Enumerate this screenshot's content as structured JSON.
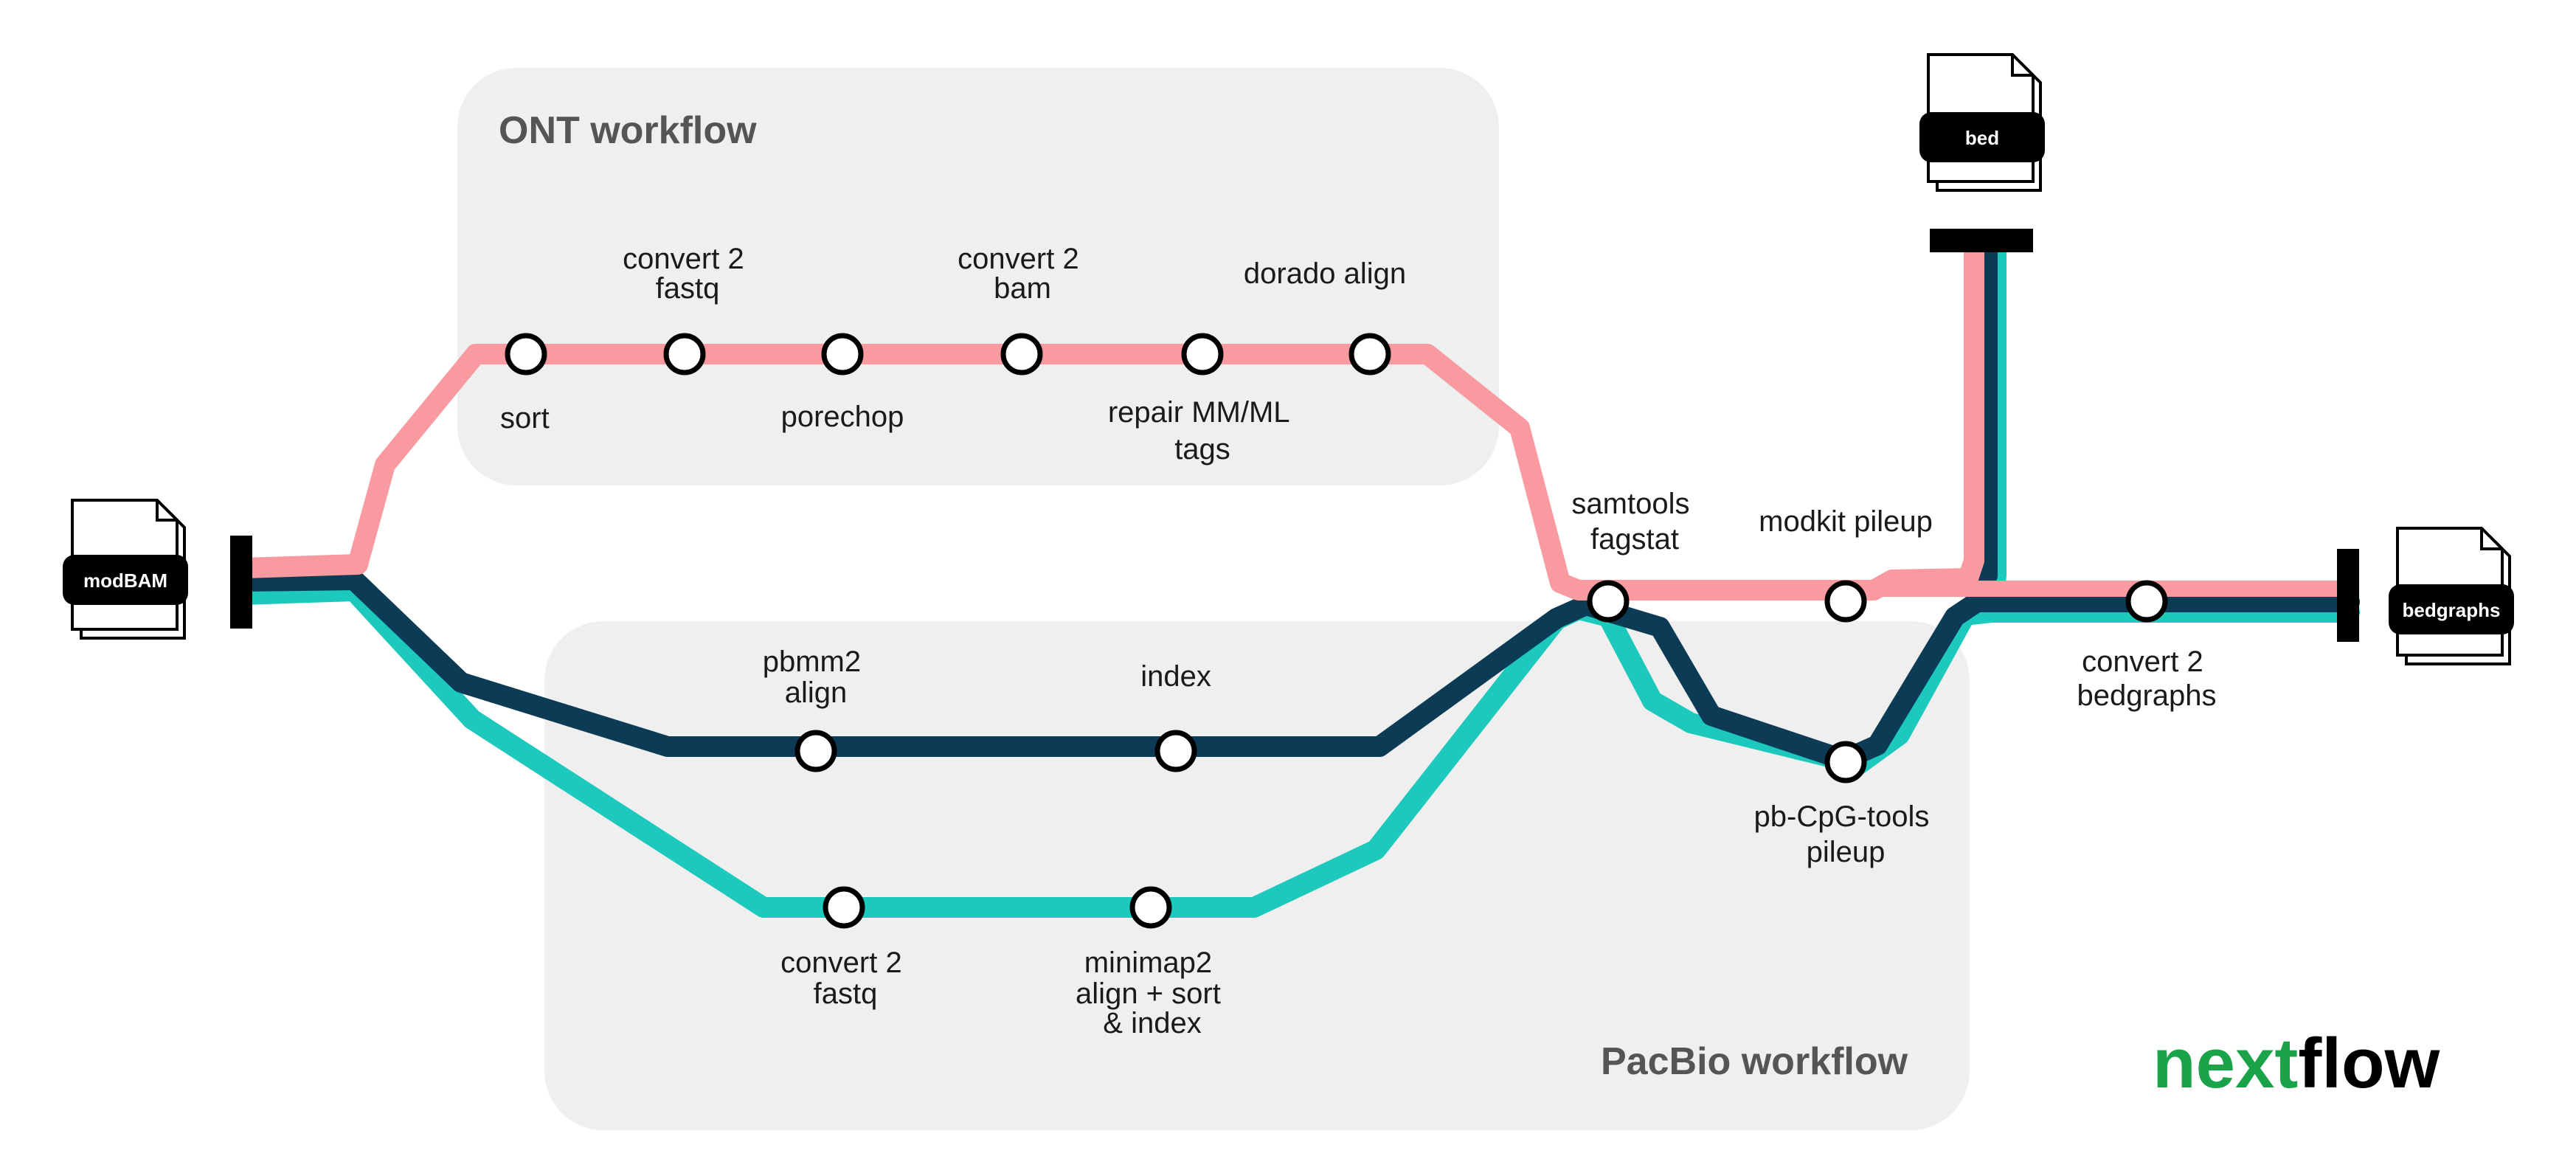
{
  "groups": {
    "ont": "ONT workflow",
    "pacbio": "PacBio workflow"
  },
  "files": {
    "input": "modBAM",
    "bed": "bed",
    "bedgraphs": "bedgraphs"
  },
  "steps": {
    "sort": "sort",
    "convert_fastq_ont": [
      "convert 2",
      "fastq"
    ],
    "porechop": "porechop",
    "convert_bam": [
      "convert 2",
      "bam"
    ],
    "repair_tags": [
      "repair MM/ML",
      "tags"
    ],
    "dorado_align": "dorado align",
    "samtools": [
      "samtools",
      "fagstat"
    ],
    "modkit": "modkit pileup",
    "convert_bedgraphs": [
      "convert 2",
      "bedgraphs"
    ],
    "pbmm2": [
      "pbmm2",
      "align"
    ],
    "index": "index",
    "pbcpg": [
      "pb-CpG-tools",
      "pileup"
    ],
    "convert_fastq_pb": [
      "convert 2",
      "fastq"
    ],
    "minimap2": [
      "minimap2",
      "align + sort",
      "& index"
    ]
  },
  "logo": {
    "part1": "next",
    "part2": "flow"
  },
  "colors": {
    "ont_line": "#F89AA0",
    "pbmm2_line": "#0B3B55",
    "minimap_line": "#1DC8BC",
    "group_bg": "#EFEFEF",
    "logo_green": "#1BA34A"
  }
}
